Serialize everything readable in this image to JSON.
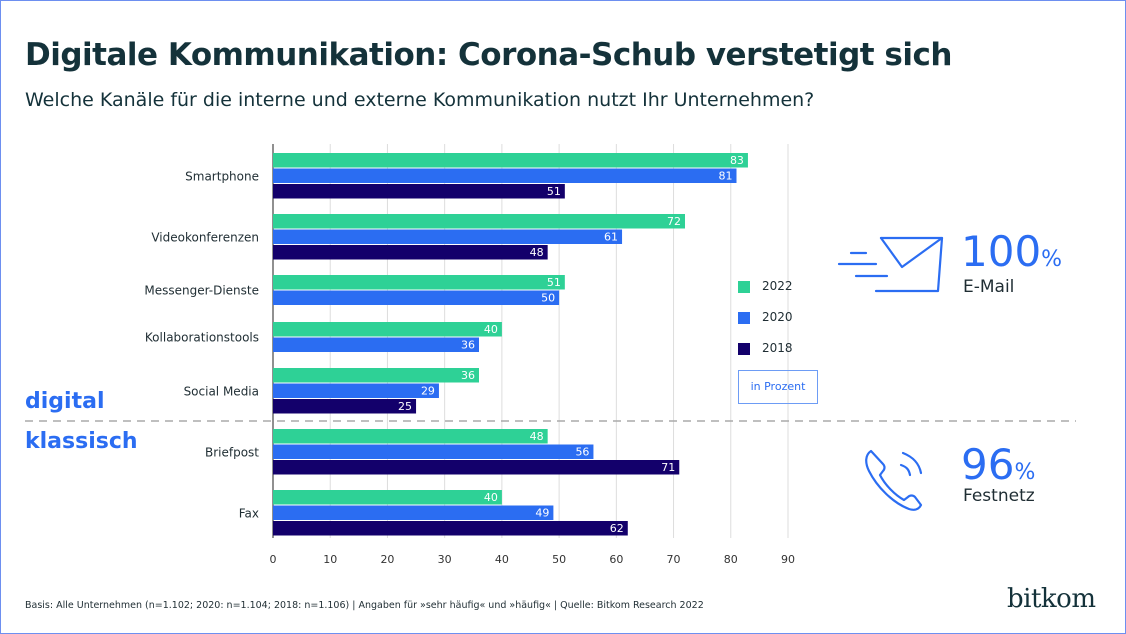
{
  "title": "Digitale Kommunikation: Corona-Schub verstetigt sich",
  "subtitle": "Welche Kanäle für die interne und externe Kommunikation nutzt Ihr Unternehmen?",
  "groups": {
    "digital": "digital",
    "classic": "klassisch"
  },
  "unit_label": "in Prozent",
  "highlights": [
    {
      "icon": "envelope-icon",
      "value": "100",
      "unit": "%",
      "label": "E-Mail"
    },
    {
      "icon": "phone-icon",
      "value": "96",
      "unit": "%",
      "label": "Festnetz"
    }
  ],
  "footnote": "Basis: Alle Unternehmen (n=1.102; 2020: n=1.104; 2018: n=1.106) | Angaben für »sehr häufig« und »häufig« | Quelle: Bitkom Research 2022",
  "logo": "bitkom",
  "colors": {
    "2022": "#2ed196",
    "2020": "#2b6df2",
    "2018": "#13006b",
    "accent": "#2b6df2"
  },
  "chart_data": {
    "type": "bar",
    "orientation": "horizontal",
    "categories": [
      "Smartphone",
      "Videokonferenzen",
      "Messenger-Dienste",
      "Kollaborationstools",
      "Social Media",
      "Briefpost",
      "Fax"
    ],
    "series": [
      {
        "name": "2022",
        "values": [
          83,
          72,
          51,
          40,
          36,
          48,
          40
        ]
      },
      {
        "name": "2020",
        "values": [
          81,
          61,
          50,
          36,
          29,
          56,
          49
        ]
      },
      {
        "name": "2018",
        "values": [
          51,
          48,
          null,
          null,
          25,
          71,
          62
        ]
      }
    ],
    "xlim": [
      0,
      90
    ],
    "xticks": [
      0,
      10,
      20,
      30,
      40,
      50,
      60,
      70,
      80,
      90
    ],
    "grid": true,
    "legend": "right"
  }
}
